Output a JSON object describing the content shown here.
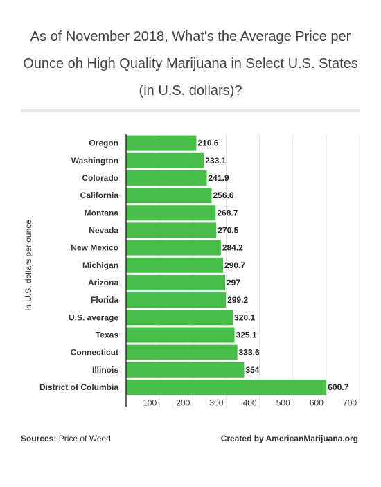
{
  "title": "As of November 2018, What's the Average Price per Ounce oh High Quality Marijuana in Select U.S. States (in U.S. dollars)?",
  "footer": {
    "sources_label": "Sources:",
    "sources_value": "Price of Weed",
    "credit": "Created by AmericanMarijuana.org"
  },
  "colors": {
    "bar": "#48bd48",
    "grid": "#e3e3e3",
    "axis": "#333333"
  },
  "chart_data": {
    "type": "bar",
    "orientation": "horizontal",
    "ylabel": "in U.S. dollars per ounce",
    "categories": [
      "Oregon",
      "Washington",
      "Colorado",
      "California",
      "Montana",
      "Nevada",
      "New Mexico",
      "Michigan",
      "Arizona",
      "Florida",
      "U.S. average",
      "Texas",
      "Connecticut",
      "Illinois",
      "District of Columbia"
    ],
    "values": [
      210.6,
      233.1,
      241.9,
      256.6,
      268.7,
      270.5,
      284.2,
      290.7,
      297,
      299.2,
      320.1,
      325.1,
      333.6,
      354,
      600.7
    ],
    "value_labels": [
      "210.6",
      "233.1",
      "241.9",
      "256.6",
      "268.7",
      "270.5",
      "284.2",
      "290.7",
      "297",
      "299.2",
      "320.1",
      "325.1",
      "333.6",
      "354",
      "600.7"
    ],
    "xlim": [
      0,
      700
    ],
    "xticks": [
      100,
      200,
      300,
      400,
      500,
      600,
      700
    ],
    "xtick_labels": [
      "100",
      "200",
      "300",
      "400",
      "500",
      "600",
      "700"
    ],
    "grid": true,
    "legend": "none"
  }
}
